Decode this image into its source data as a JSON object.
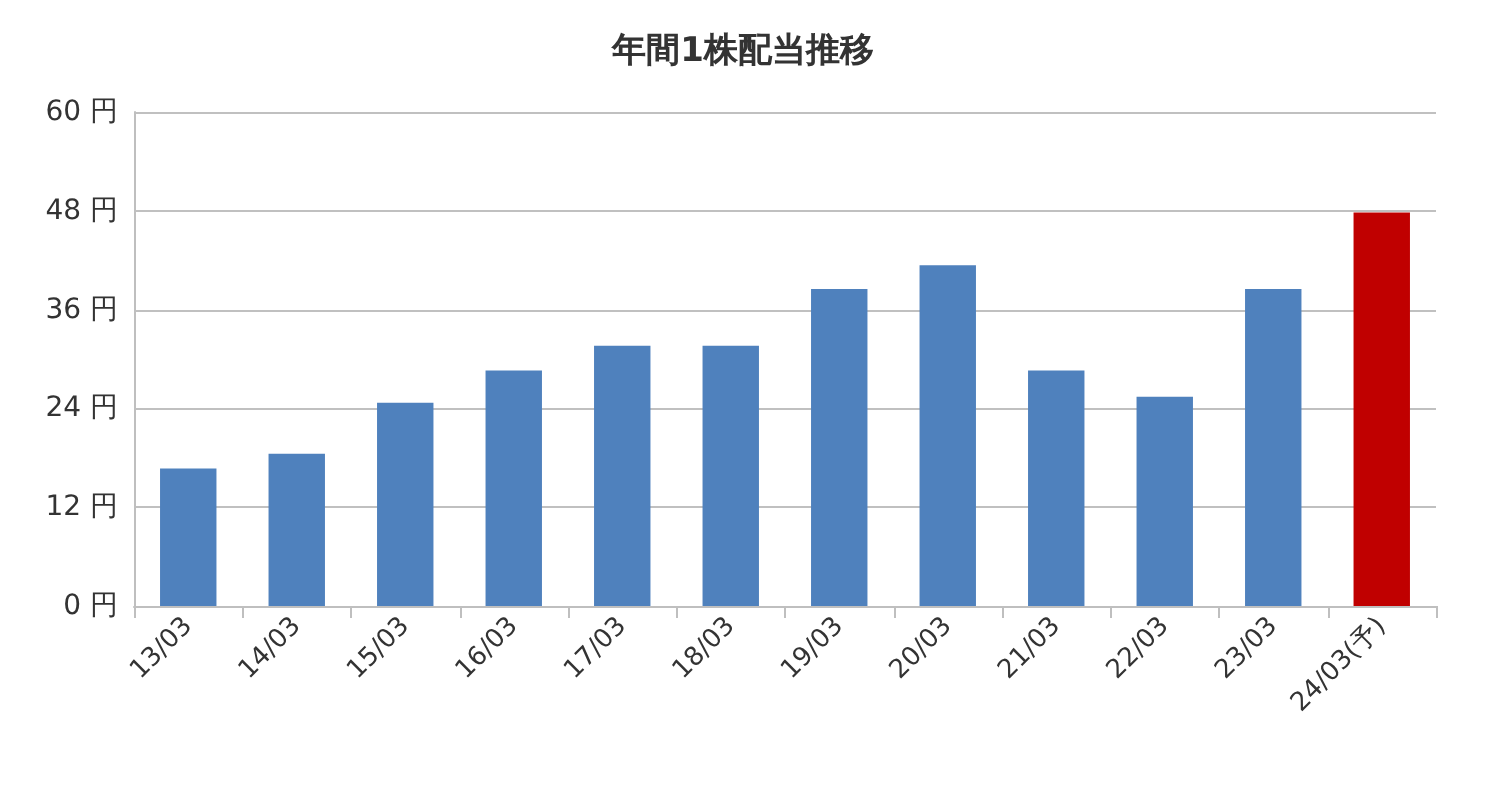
{
  "chart_data": {
    "type": "bar",
    "title": "年間1株配当推移",
    "categories": [
      "13/03",
      "14/03",
      "15/03",
      "16/03",
      "17/03",
      "18/03",
      "19/03",
      "20/03",
      "21/03",
      "22/03",
      "23/03",
      "24/03(予)"
    ],
    "values": [
      16.7,
      18.5,
      24.7,
      28.6,
      31.6,
      31.6,
      38.5,
      41.4,
      28.6,
      25.4,
      38.5,
      47.8
    ],
    "colors": [
      "#4f81bd",
      "#4f81bd",
      "#4f81bd",
      "#4f81bd",
      "#4f81bd",
      "#4f81bd",
      "#4f81bd",
      "#4f81bd",
      "#4f81bd",
      "#4f81bd",
      "#4f81bd",
      "#c00000"
    ],
    "ylim": [
      0,
      60
    ],
    "yticks": [
      {
        "value": 0,
        "label": "0 円"
      },
      {
        "value": 12,
        "label": "12 円"
      },
      {
        "value": 24,
        "label": "24 円"
      },
      {
        "value": 36,
        "label": "36 円"
      },
      {
        "value": 48,
        "label": "48 円"
      },
      {
        "value": 60,
        "label": "60 円"
      }
    ],
    "grid": "y"
  }
}
